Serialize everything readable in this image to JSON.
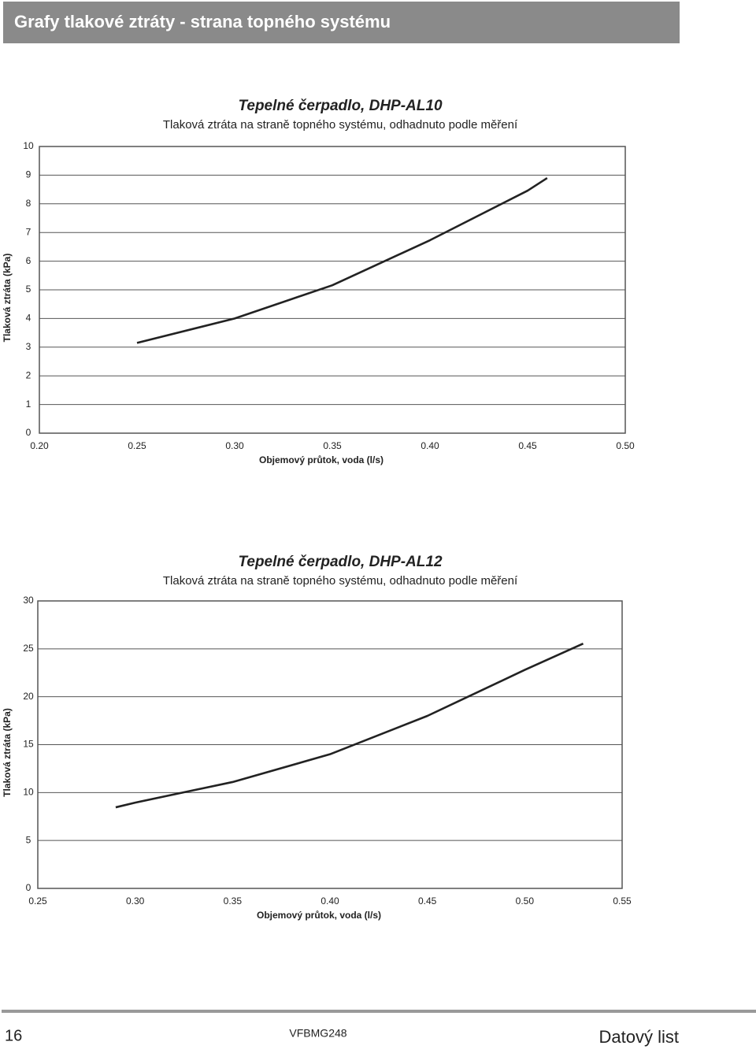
{
  "header": {
    "title": "Grafy tlakové ztráty - strana topného systému"
  },
  "chart_data": [
    {
      "type": "line",
      "title": "Tepelné čerpadlo, DHP-AL10",
      "subtitle": "Tlaková ztráta na straně topného systému, odhadnuto podle měření",
      "x_label": "Objemový průtok, voda (l/s)",
      "y_label": "Tlaková ztráta (kPa)",
      "x": [
        0.25,
        0.3,
        0.35,
        0.4,
        0.45,
        0.46
      ],
      "values": [
        3.15,
        4.0,
        5.16,
        6.73,
        8.46,
        8.9
      ],
      "color": "#222222",
      "xlim": [
        0.2,
        0.5
      ],
      "xticks": [
        {
          "value": 0.2,
          "label": "0.20"
        },
        {
          "value": 0.25,
          "label": "0.25"
        },
        {
          "value": 0.3,
          "label": "0.30"
        },
        {
          "value": 0.35,
          "label": "0.35"
        },
        {
          "value": 0.4,
          "label": "0.40"
        },
        {
          "value": 0.45,
          "label": "0.45"
        },
        {
          "value": 0.5,
          "label": "0.50"
        }
      ],
      "ylim": [
        0,
        10
      ],
      "yticks": [
        0,
        1,
        2,
        3,
        4,
        5,
        6,
        7,
        8,
        9,
        10
      ],
      "grid": true
    },
    {
      "type": "line",
      "title": "Tepelné čerpadlo, DHP-AL12",
      "subtitle": "Tlaková ztráta na straně topného systému, odhadnuto podle měření",
      "x_label": "Objemový průtok, voda (l/s)",
      "y_label": "Tlaková ztráta (kPa)",
      "x": [
        0.29,
        0.3,
        0.35,
        0.4,
        0.45,
        0.5,
        0.53
      ],
      "values": [
        8.46,
        8.95,
        11.1,
        14.0,
        18.0,
        22.8,
        25.55
      ],
      "color": "#222222",
      "xlim": [
        0.25,
        0.55
      ],
      "xticks": [
        {
          "value": 0.25,
          "label": "0.25"
        },
        {
          "value": 0.3,
          "label": "0.30"
        },
        {
          "value": 0.35,
          "label": "0.35"
        },
        {
          "value": 0.4,
          "label": "0.40"
        },
        {
          "value": 0.45,
          "label": "0.45"
        },
        {
          "value": 0.5,
          "label": "0.50"
        },
        {
          "value": 0.55,
          "label": "0.55"
        }
      ],
      "ylim": [
        0,
        30
      ],
      "yticks": [
        0,
        5,
        10,
        15,
        20,
        25,
        30
      ],
      "grid": true
    }
  ],
  "footer": {
    "page_number": "16",
    "code": "VFBMG248",
    "label": "Datový list"
  }
}
